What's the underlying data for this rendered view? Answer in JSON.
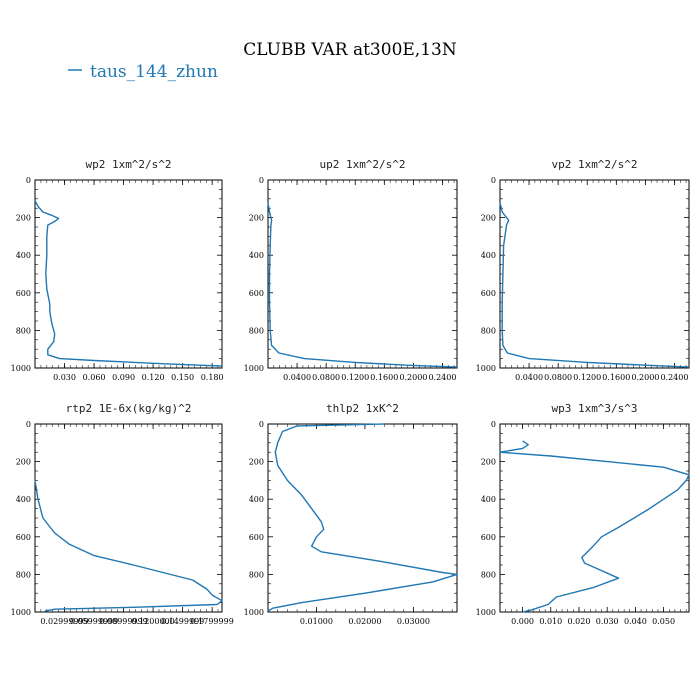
{
  "title": "CLUBB VAR at300E,13N",
  "legend": {
    "label": "taus_144_zhun",
    "color": "#1f77b4"
  },
  "line_color": "#1f77b4",
  "chart_data": [
    {
      "type": "line",
      "title": "wp2  1xm^2/s^2",
      "xlim": [
        0,
        0.19
      ],
      "ylim": [
        0,
        1000
      ],
      "y_inverted": true,
      "xticks": [
        0.03,
        0.06,
        0.09,
        0.12,
        0.15,
        0.18
      ],
      "xtick_labels": [
        "0.030",
        "0.060",
        "0.090",
        "0.120",
        "0.150",
        "0.180"
      ],
      "yticks": [
        0,
        200,
        400,
        600,
        800,
        1000
      ],
      "ytick_labels": [
        "0",
        "200",
        "400",
        "600",
        "800",
        "1000"
      ],
      "series": [
        {
          "x": [
            0.0,
            0.003,
            0.008,
            0.018,
            0.024,
            0.02,
            0.013,
            0.012,
            0.012,
            0.011,
            0.012,
            0.015,
            0.015,
            0.017,
            0.02,
            0.019,
            0.013,
            0.013,
            0.025,
            0.06,
            0.12,
            0.19
          ],
          "y": [
            110,
            140,
            170,
            190,
            205,
            220,
            240,
            300,
            400,
            500,
            580,
            660,
            700,
            760,
            820,
            860,
            900,
            930,
            950,
            960,
            975,
            990
          ]
        }
      ]
    },
    {
      "type": "line",
      "title": "up2  1xm^2/s^2",
      "xlim": [
        0,
        0.26
      ],
      "ylim": [
        0,
        1000
      ],
      "y_inverted": true,
      "xticks": [
        0.04,
        0.08,
        0.12,
        0.16,
        0.2,
        0.24
      ],
      "xtick_labels": [
        "0.0400",
        "0.0800",
        "0.1200",
        "0.1600",
        "0.2000",
        "0.2400"
      ],
      "yticks": [
        0,
        200,
        400,
        600,
        800,
        1000
      ],
      "ytick_labels": [
        "0",
        "200",
        "400",
        "600",
        "800",
        "1000"
      ],
      "series": [
        {
          "x": [
            0.0,
            0.002,
            0.004,
            0.005,
            0.004,
            0.003,
            0.002,
            0.002,
            0.003,
            0.005,
            0.015,
            0.05,
            0.12,
            0.19,
            0.26
          ],
          "y": [
            120,
            170,
            200,
            215,
            240,
            350,
            500,
            650,
            800,
            880,
            920,
            950,
            970,
            985,
            995
          ]
        }
      ]
    },
    {
      "type": "line",
      "title": "vp2  1xm^2/s^2",
      "xlim": [
        0,
        0.26
      ],
      "ylim": [
        0,
        1000
      ],
      "y_inverted": true,
      "xticks": [
        0.04,
        0.08,
        0.12,
        0.16,
        0.2,
        0.24
      ],
      "xtick_labels": [
        "0.0400",
        "0.0800",
        "0.1200",
        "0.1600",
        "0.2000",
        "0.2400"
      ],
      "yticks": [
        0,
        200,
        400,
        600,
        800,
        1000
      ],
      "ytick_labels": [
        "0",
        "200",
        "400",
        "600",
        "800",
        "1000"
      ],
      "series": [
        {
          "x": [
            0.0,
            0.003,
            0.009,
            0.012,
            0.009,
            0.005,
            0.004,
            0.003,
            0.003,
            0.004,
            0.01,
            0.04,
            0.12,
            0.2,
            0.26
          ],
          "y": [
            120,
            170,
            200,
            215,
            240,
            350,
            500,
            650,
            800,
            880,
            920,
            950,
            970,
            985,
            995
          ]
        }
      ]
    },
    {
      "type": "line",
      "title": "rtp2  1E-6x(kg/kg)^2",
      "xlim": [
        0,
        0.19
      ],
      "ylim": [
        0,
        1000
      ],
      "y_inverted": true,
      "xticks": [
        0.03,
        0.06,
        0.09,
        0.12,
        0.15,
        0.18
      ],
      "xtick_labels": [
        "0.02999999",
        "0.05999999",
        "0.08999999",
        "0.1200000",
        "0.1499999",
        "0.1799999"
      ],
      "yticks": [
        0,
        200,
        400,
        600,
        800,
        1000
      ],
      "ytick_labels": [
        "0",
        "200",
        "400",
        "600",
        "800",
        "1000"
      ],
      "series": [
        {
          "x": [
            0.0,
            0.003,
            0.008,
            0.02,
            0.035,
            0.06,
            0.1,
            0.13,
            0.16,
            0.175,
            0.18,
            0.19,
            0.185,
            0.1,
            0.02,
            0.01
          ],
          "y": [
            300,
            400,
            500,
            580,
            640,
            700,
            750,
            790,
            830,
            880,
            910,
            940,
            960,
            975,
            985,
            995
          ]
        }
      ]
    },
    {
      "type": "line",
      "title": "thlp2  1xK^2",
      "xlim": [
        0,
        0.039
      ],
      "ylim": [
        0,
        1000
      ],
      "y_inverted": true,
      "xticks": [
        0.01,
        0.02,
        0.03
      ],
      "xtick_labels": [
        "0.01000",
        "0.02000",
        "0.03000"
      ],
      "yticks": [
        0,
        200,
        400,
        600,
        800,
        1000
      ],
      "ytick_labels": [
        "0",
        "200",
        "400",
        "600",
        "800",
        "1000"
      ],
      "series": [
        {
          "x": [
            0.024,
            0.006,
            0.003,
            0.002,
            0.0015,
            0.002,
            0.004,
            0.007,
            0.009,
            0.011,
            0.0115,
            0.01,
            0.009,
            0.011,
            0.023,
            0.036,
            0.039,
            0.034,
            0.02,
            0.007,
            0.001,
            0.0
          ],
          "y": [
            0,
            10,
            40,
            100,
            150,
            220,
            300,
            380,
            450,
            520,
            560,
            600,
            650,
            680,
            730,
            790,
            800,
            840,
            900,
            950,
            980,
            995
          ]
        }
      ]
    },
    {
      "type": "line",
      "title": "wp3  1xm^3/s^3",
      "xlim": [
        -0.008,
        0.059
      ],
      "ylim": [
        0,
        1000
      ],
      "y_inverted": true,
      "xticks": [
        0.0,
        0.01,
        0.02,
        0.03,
        0.04,
        0.05
      ],
      "xtick_labels": [
        "0.000",
        "0.010",
        "0.020",
        "0.030",
        "0.040",
        "0.050"
      ],
      "yticks": [
        0,
        200,
        400,
        600,
        800,
        1000
      ],
      "ytick_labels": [
        "0",
        "200",
        "400",
        "600",
        "800",
        "1000"
      ],
      "series": [
        {
          "x": [
            0.0,
            0.002,
            0.0,
            -0.008,
            0.01,
            0.03,
            0.05,
            0.059,
            0.058,
            0.055,
            0.05,
            0.045,
            0.034,
            0.028,
            0.025,
            0.021,
            0.022,
            0.028,
            0.034,
            0.025,
            0.012,
            0.009,
            0.003,
            0.0
          ],
          "y": [
            90,
            110,
            130,
            150,
            170,
            200,
            230,
            270,
            300,
            350,
            400,
            450,
            550,
            600,
            650,
            710,
            740,
            780,
            820,
            870,
            920,
            960,
            990,
            1000
          ]
        }
      ]
    }
  ]
}
